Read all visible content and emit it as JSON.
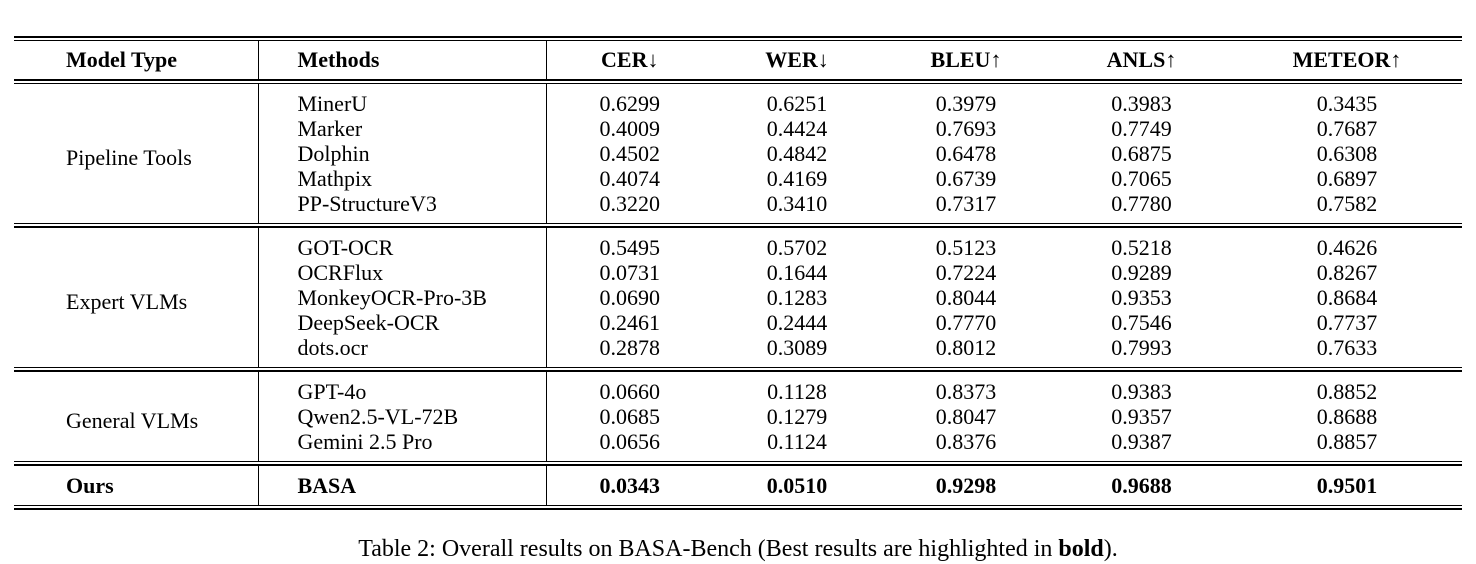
{
  "table": {
    "columns": [
      {
        "label": "Model Type"
      },
      {
        "label": "Methods"
      },
      {
        "label": "CER↓",
        "direction": "lower-is-better"
      },
      {
        "label": "WER↓",
        "direction": "lower-is-better"
      },
      {
        "label": "BLEU↑",
        "direction": "higher-is-better"
      },
      {
        "label": "ANLS↑",
        "direction": "higher-is-better"
      },
      {
        "label": "METEOR↑",
        "direction": "higher-is-better"
      }
    ],
    "groups": [
      {
        "model_type": "Pipeline Tools",
        "bold": false,
        "rows": [
          {
            "method": "MinerU",
            "values": [
              "0.6299",
              "0.6251",
              "0.3979",
              "0.3983",
              "0.3435"
            ]
          },
          {
            "method": "Marker",
            "values": [
              "0.4009",
              "0.4424",
              "0.7693",
              "0.7749",
              "0.7687"
            ]
          },
          {
            "method": "Dolphin",
            "values": [
              "0.4502",
              "0.4842",
              "0.6478",
              "0.6875",
              "0.6308"
            ]
          },
          {
            "method": "Mathpix",
            "values": [
              "0.4074",
              "0.4169",
              "0.6739",
              "0.7065",
              "0.6897"
            ]
          },
          {
            "method": "PP-StructureV3",
            "values": [
              "0.3220",
              "0.3410",
              "0.7317",
              "0.7780",
              "0.7582"
            ]
          }
        ]
      },
      {
        "model_type": "Expert VLMs",
        "bold": false,
        "rows": [
          {
            "method": "GOT-OCR",
            "values": [
              "0.5495",
              "0.5702",
              "0.5123",
              "0.5218",
              "0.4626"
            ]
          },
          {
            "method": "OCRFlux",
            "values": [
              "0.0731",
              "0.1644",
              "0.7224",
              "0.9289",
              "0.8267"
            ]
          },
          {
            "method": "MonkeyOCR-Pro-3B",
            "values": [
              "0.0690",
              "0.1283",
              "0.8044",
              "0.9353",
              "0.8684"
            ]
          },
          {
            "method": "DeepSeek-OCR",
            "values": [
              "0.2461",
              "0.2444",
              "0.7770",
              "0.7546",
              "0.7737"
            ]
          },
          {
            "method": "dots.ocr",
            "values": [
              "0.2878",
              "0.3089",
              "0.8012",
              "0.7993",
              "0.7633"
            ]
          }
        ]
      },
      {
        "model_type": "General VLMs",
        "bold": false,
        "rows": [
          {
            "method": "GPT-4o",
            "values": [
              "0.0660",
              "0.1128",
              "0.8373",
              "0.9383",
              "0.8852"
            ]
          },
          {
            "method": "Qwen2.5-VL-72B",
            "values": [
              "0.0685",
              "0.1279",
              "0.8047",
              "0.9357",
              "0.8688"
            ]
          },
          {
            "method": "Gemini 2.5 Pro",
            "values": [
              "0.0656",
              "0.1124",
              "0.8376",
              "0.9387",
              "0.8857"
            ]
          }
        ]
      },
      {
        "model_type": "Ours",
        "bold": true,
        "rows": [
          {
            "method": "BASA",
            "values": [
              "0.0343",
              "0.0510",
              "0.9298",
              "0.9688",
              "0.9501"
            ]
          }
        ]
      }
    ]
  },
  "caption": {
    "prefix": "Table 2: Overall results on BASA-Bench (Best results are highlighted in ",
    "bold_word": "bold",
    "suffix": ")."
  }
}
